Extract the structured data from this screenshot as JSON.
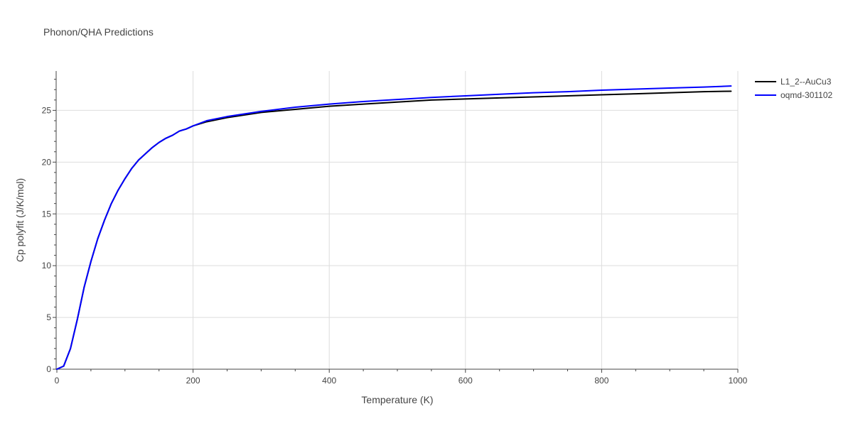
{
  "chart_data": {
    "type": "line",
    "title": "Phonon/QHA Predictions",
    "xlabel": "Temperature (K)",
    "ylabel": "Cp polyfit (J/K/mol)",
    "xlim": [
      0,
      1000
    ],
    "ylim": [
      0,
      28.8
    ],
    "xticks": [
      0,
      200,
      400,
      600,
      800,
      1000
    ],
    "xtick_labels": [
      "0",
      "200",
      "400",
      "600",
      "800",
      "1000"
    ],
    "yticks": [
      0,
      5,
      10,
      15,
      20,
      25
    ],
    "ytick_labels": [
      "0",
      "5",
      "10",
      "15",
      "20",
      "25"
    ],
    "grid": true,
    "legend_position": "top-right",
    "series": [
      {
        "name": "L1_2--AuCu3",
        "color": "#000000",
        "x": [
          0,
          10,
          20,
          30,
          40,
          50,
          60,
          70,
          80,
          90,
          100,
          110,
          120,
          130,
          140,
          150,
          160,
          170,
          180,
          190,
          200,
          220,
          250,
          300,
          350,
          400,
          450,
          500,
          550,
          600,
          650,
          700,
          750,
          800,
          850,
          900,
          950,
          990
        ],
        "values": [
          0,
          0.3,
          2.0,
          4.8,
          7.9,
          10.4,
          12.6,
          14.4,
          16.0,
          17.3,
          18.4,
          19.4,
          20.2,
          20.8,
          21.4,
          21.9,
          22.3,
          22.6,
          23.0,
          23.2,
          23.5,
          23.9,
          24.3,
          24.8,
          25.1,
          25.4,
          25.6,
          25.8,
          26.0,
          26.1,
          26.2,
          26.3,
          26.4,
          26.5,
          26.6,
          26.7,
          26.8,
          26.85
        ]
      },
      {
        "name": "oqmd-301102",
        "color": "#0000ff",
        "x": [
          0,
          10,
          20,
          30,
          40,
          50,
          60,
          70,
          80,
          90,
          100,
          110,
          120,
          130,
          140,
          150,
          160,
          170,
          180,
          190,
          200,
          220,
          250,
          300,
          350,
          400,
          450,
          500,
          550,
          600,
          650,
          700,
          750,
          800,
          850,
          900,
          950,
          990
        ],
        "values": [
          0,
          0.3,
          2.0,
          4.8,
          7.9,
          10.4,
          12.6,
          14.4,
          16.0,
          17.3,
          18.4,
          19.4,
          20.2,
          20.8,
          21.4,
          21.9,
          22.3,
          22.6,
          23.0,
          23.2,
          23.5,
          24.0,
          24.4,
          24.9,
          25.3,
          25.6,
          25.85,
          26.05,
          26.25,
          26.4,
          26.55,
          26.7,
          26.8,
          26.95,
          27.05,
          27.15,
          27.25,
          27.35
        ]
      }
    ]
  }
}
